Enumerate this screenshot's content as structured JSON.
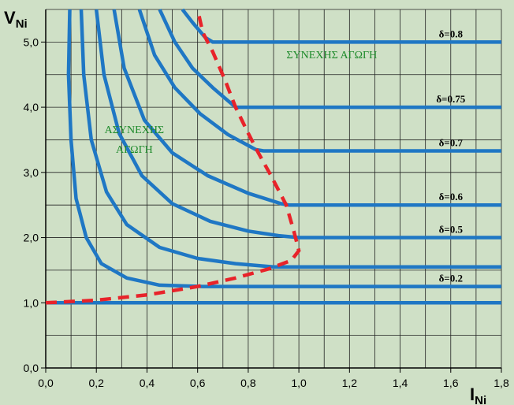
{
  "colors": {
    "background": "#cfe0c6",
    "plot_background": "#cfe0c6",
    "grid": "#222222",
    "curve": "#1f77c4",
    "boundary": "#e8232a",
    "region_text": "#1d8a2a"
  },
  "chart_data": {
    "type": "line",
    "title": "",
    "xlabel": "I",
    "xlabel_sub": "Ni",
    "ylabel": "V",
    "ylabel_sub": "Ni",
    "xlim": [
      0,
      1.8
    ],
    "ylim": [
      0,
      5.5
    ],
    "x_ticks": [
      "0,0",
      "0,2",
      "0,4",
      "0,6",
      "0,8",
      "1,0",
      "1,2",
      "1,4",
      "1,6",
      "1,8"
    ],
    "x_tick_values": [
      0,
      0.2,
      0.4,
      0.6,
      0.8,
      1.0,
      1.2,
      1.4,
      1.6,
      1.8
    ],
    "y_ticks": [
      "0,0",
      "1,0",
      "2,0",
      "3,0",
      "4,0",
      "5,0"
    ],
    "y_tick_values": [
      0,
      1,
      2,
      3,
      4,
      5
    ],
    "grid": true,
    "series": [
      {
        "name": "δ=0.2",
        "points": [
          [
            0.095,
            5.5
          ],
          [
            0.09,
            4.5
          ],
          [
            0.1,
            3.5
          ],
          [
            0.12,
            2.6
          ],
          [
            0.16,
            2.0
          ],
          [
            0.22,
            1.6
          ],
          [
            0.32,
            1.38
          ],
          [
            0.45,
            1.27
          ],
          [
            0.62,
            1.25
          ],
          [
            1.8,
            1.25
          ]
        ]
      },
      {
        "name": "",
        "points": [
          [
            0.0,
            1.0
          ],
          [
            1.8,
            1.0
          ]
        ]
      },
      {
        "name": "",
        "points": [
          [
            0.14,
            5.5
          ],
          [
            0.15,
            4.5
          ],
          [
            0.18,
            3.5
          ],
          [
            0.24,
            2.7
          ],
          [
            0.32,
            2.2
          ],
          [
            0.45,
            1.85
          ],
          [
            0.6,
            1.68
          ],
          [
            0.75,
            1.6
          ],
          [
            0.9,
            1.55
          ],
          [
            1.8,
            1.55
          ]
        ]
      },
      {
        "name": "δ=0.5",
        "points": [
          [
            0.2,
            5.5
          ],
          [
            0.23,
            4.5
          ],
          [
            0.29,
            3.6
          ],
          [
            0.38,
            2.95
          ],
          [
            0.5,
            2.52
          ],
          [
            0.65,
            2.25
          ],
          [
            0.8,
            2.1
          ],
          [
            0.92,
            2.03
          ],
          [
            1.0,
            2.0
          ],
          [
            1.8,
            2.0
          ]
        ]
      },
      {
        "name": "δ=0.6",
        "points": [
          [
            0.27,
            5.5
          ],
          [
            0.31,
            4.6
          ],
          [
            0.39,
            3.8
          ],
          [
            0.5,
            3.3
          ],
          [
            0.64,
            2.95
          ],
          [
            0.8,
            2.68
          ],
          [
            0.93,
            2.52
          ],
          [
            0.96,
            2.5
          ],
          [
            1.8,
            2.5
          ]
        ]
      },
      {
        "name": "δ=0.7",
        "points": [
          [
            0.37,
            5.5
          ],
          [
            0.43,
            4.8
          ],
          [
            0.51,
            4.3
          ],
          [
            0.61,
            3.9
          ],
          [
            0.72,
            3.58
          ],
          [
            0.83,
            3.35
          ],
          [
            0.86,
            3.33
          ],
          [
            1.8,
            3.33
          ]
        ]
      },
      {
        "name": "δ=0.75",
        "points": [
          [
            0.45,
            5.5
          ],
          [
            0.51,
            5.0
          ],
          [
            0.58,
            4.6
          ],
          [
            0.66,
            4.3
          ],
          [
            0.75,
            4.0
          ],
          [
            1.8,
            4.0
          ]
        ]
      },
      {
        "name": "δ=0.8",
        "points": [
          [
            0.54,
            5.5
          ],
          [
            0.58,
            5.3
          ],
          [
            0.63,
            5.07
          ],
          [
            0.66,
            5.0
          ],
          [
            1.8,
            5.0
          ]
        ]
      }
    ],
    "boundary": {
      "style": "dashed",
      "points": [
        [
          0.0,
          1.0
        ],
        [
          0.2,
          1.04
        ],
        [
          0.4,
          1.12
        ],
        [
          0.6,
          1.25
        ],
        [
          0.75,
          1.38
        ],
        [
          0.88,
          1.52
        ],
        [
          0.97,
          1.65
        ],
        [
          1.0,
          1.8
        ],
        [
          0.98,
          2.1
        ],
        [
          0.95,
          2.5
        ],
        [
          0.89,
          2.95
        ],
        [
          0.84,
          3.3
        ],
        [
          0.8,
          3.6
        ],
        [
          0.75,
          4.0
        ],
        [
          0.71,
          4.4
        ],
        [
          0.66,
          4.85
        ],
        [
          0.62,
          5.15
        ],
        [
          0.6,
          5.5
        ]
      ]
    },
    "delta_labels": [
      {
        "text": "δ=0.8",
        "x": 1.6,
        "y": 5.0
      },
      {
        "text": "δ=0.75",
        "x": 1.6,
        "y": 4.0
      },
      {
        "text": "δ=0.7",
        "x": 1.6,
        "y": 3.33
      },
      {
        "text": "δ=0.6",
        "x": 1.6,
        "y": 2.5
      },
      {
        "text": "δ=0.5",
        "x": 1.6,
        "y": 2.0
      },
      {
        "text": "δ=0.2",
        "x": 1.6,
        "y": 1.25
      }
    ],
    "annotations": [
      {
        "text": "ΣΥΝΕΧΗΣ ΑΓΩΓΗ",
        "x": 1.13,
        "y": 4.75
      },
      {
        "text": "ΑΣΥΝΕΧΗΣ",
        "x": 0.35,
        "y": 3.6
      },
      {
        "text": "ΑΓΩΓΗ",
        "x": 0.35,
        "y": 3.3
      }
    ]
  }
}
